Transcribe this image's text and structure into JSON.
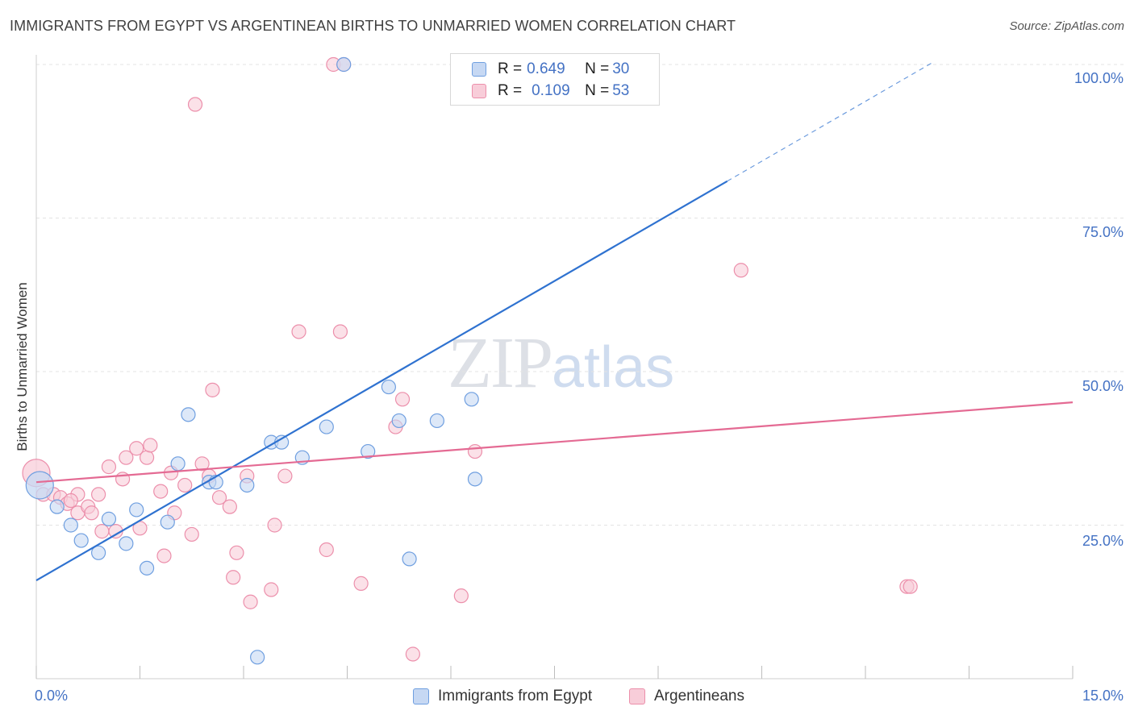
{
  "title": "IMMIGRANTS FROM EGYPT VS ARGENTINEAN BIRTHS TO UNMARRIED WOMEN CORRELATION CHART",
  "source": "Source: ZipAtlas.com",
  "watermark": {
    "zip": "ZIP",
    "atlas": "atlas"
  },
  "legend": {
    "rows": [
      {
        "r_label": "R = ",
        "r_value": "0.649",
        "n_label": "N = ",
        "n_value": "30"
      },
      {
        "r_label": "R = ",
        "r_value": "0.109",
        "n_label": "N = ",
        "n_value": "53"
      }
    ]
  },
  "chart_data": {
    "type": "scatter",
    "title": "IMMIGRANTS FROM EGYPT VS ARGENTINEAN BIRTHS TO UNMARRIED WOMEN CORRELATION CHART",
    "xlabel": "",
    "ylabel": "Births to Unmarried Women",
    "xlim": [
      0,
      15
    ],
    "ylim": [
      0,
      102
    ],
    "x_tick_labels": [
      "0.0%",
      "15.0%"
    ],
    "y_ticks": [
      25,
      50,
      75,
      100
    ],
    "y_tick_labels": [
      "25.0%",
      "50.0%",
      "75.0%",
      "100.0%"
    ],
    "grid": true,
    "legend_position": "top-center",
    "series": [
      {
        "name": "Immigrants from Egypt",
        "color": "#6f9fe0",
        "fill": "#c6d8f3",
        "line_color": "#2f72d0",
        "r": 0.649,
        "n": 30,
        "points": [
          [
            0.05,
            31.5
          ],
          [
            0.3,
            28
          ],
          [
            0.5,
            25
          ],
          [
            0.65,
            22.5
          ],
          [
            0.9,
            20.5
          ],
          [
            1.05,
            26
          ],
          [
            1.3,
            22
          ],
          [
            1.45,
            27.5
          ],
          [
            1.6,
            18
          ],
          [
            1.9,
            25.5
          ],
          [
            2.05,
            35
          ],
          [
            2.2,
            43
          ],
          [
            2.5,
            32
          ],
          [
            2.6,
            32
          ],
          [
            3.05,
            31.5
          ],
          [
            3.2,
            3.5
          ],
          [
            3.4,
            38.5
          ],
          [
            3.55,
            38.5
          ],
          [
            3.85,
            36
          ],
          [
            4.2,
            41
          ],
          [
            4.8,
            37
          ],
          [
            5.1,
            47.5
          ],
          [
            5.25,
            42
          ],
          [
            5.4,
            19.5
          ],
          [
            5.8,
            42
          ],
          [
            6.3,
            45.5
          ],
          [
            6.35,
            32.5
          ],
          [
            7.9,
            100
          ],
          [
            8.75,
            100
          ],
          [
            4.45,
            100
          ]
        ],
        "trend": {
          "x0": 0.0,
          "y0": 16.0,
          "x1": 10.0,
          "y1": 81.0,
          "dash_to_x": 13.0,
          "dash_to_y": 100.5
        }
      },
      {
        "name": "Argentineans",
        "color": "#ec8fab",
        "fill": "#f8cdd9",
        "line_color": "#e46a93",
        "r": 0.109,
        "n": 53,
        "points": [
          [
            0.0,
            33.5
          ],
          [
            0.1,
            30
          ],
          [
            0.25,
            30
          ],
          [
            0.35,
            29.5
          ],
          [
            0.45,
            28.5
          ],
          [
            0.6,
            27
          ],
          [
            0.6,
            30
          ],
          [
            0.75,
            28
          ],
          [
            0.8,
            27
          ],
          [
            0.9,
            30
          ],
          [
            0.95,
            24
          ],
          [
            1.05,
            34.5
          ],
          [
            1.15,
            24
          ],
          [
            1.25,
            32.5
          ],
          [
            1.3,
            36
          ],
          [
            1.45,
            37.5
          ],
          [
            1.5,
            24.5
          ],
          [
            1.6,
            36
          ],
          [
            1.65,
            38
          ],
          [
            1.8,
            30.5
          ],
          [
            1.85,
            20
          ],
          [
            1.95,
            33.5
          ],
          [
            2.0,
            27
          ],
          [
            2.15,
            31.5
          ],
          [
            2.25,
            23.5
          ],
          [
            2.3,
            93.5
          ],
          [
            2.4,
            35
          ],
          [
            2.5,
            33
          ],
          [
            2.55,
            47
          ],
          [
            2.65,
            29.5
          ],
          [
            2.8,
            28
          ],
          [
            2.85,
            16.5
          ],
          [
            2.9,
            20.5
          ],
          [
            3.05,
            33
          ],
          [
            3.1,
            12.5
          ],
          [
            3.4,
            14.5
          ],
          [
            3.45,
            25
          ],
          [
            3.6,
            33
          ],
          [
            3.8,
            56.5
          ],
          [
            4.2,
            21
          ],
          [
            4.3,
            100
          ],
          [
            4.4,
            56.5
          ],
          [
            4.45,
            100
          ],
          [
            4.7,
            15.5
          ],
          [
            5.2,
            41
          ],
          [
            5.3,
            45.5
          ],
          [
            5.45,
            4
          ],
          [
            6.15,
            13.5
          ],
          [
            6.35,
            37
          ],
          [
            10.2,
            66.5
          ],
          [
            12.6,
            15
          ],
          [
            12.65,
            15
          ],
          [
            0.5,
            29
          ]
        ],
        "trend": {
          "x0": 0.0,
          "y0": 32.0,
          "x1": 15.0,
          "y1": 45.0
        }
      }
    ]
  }
}
